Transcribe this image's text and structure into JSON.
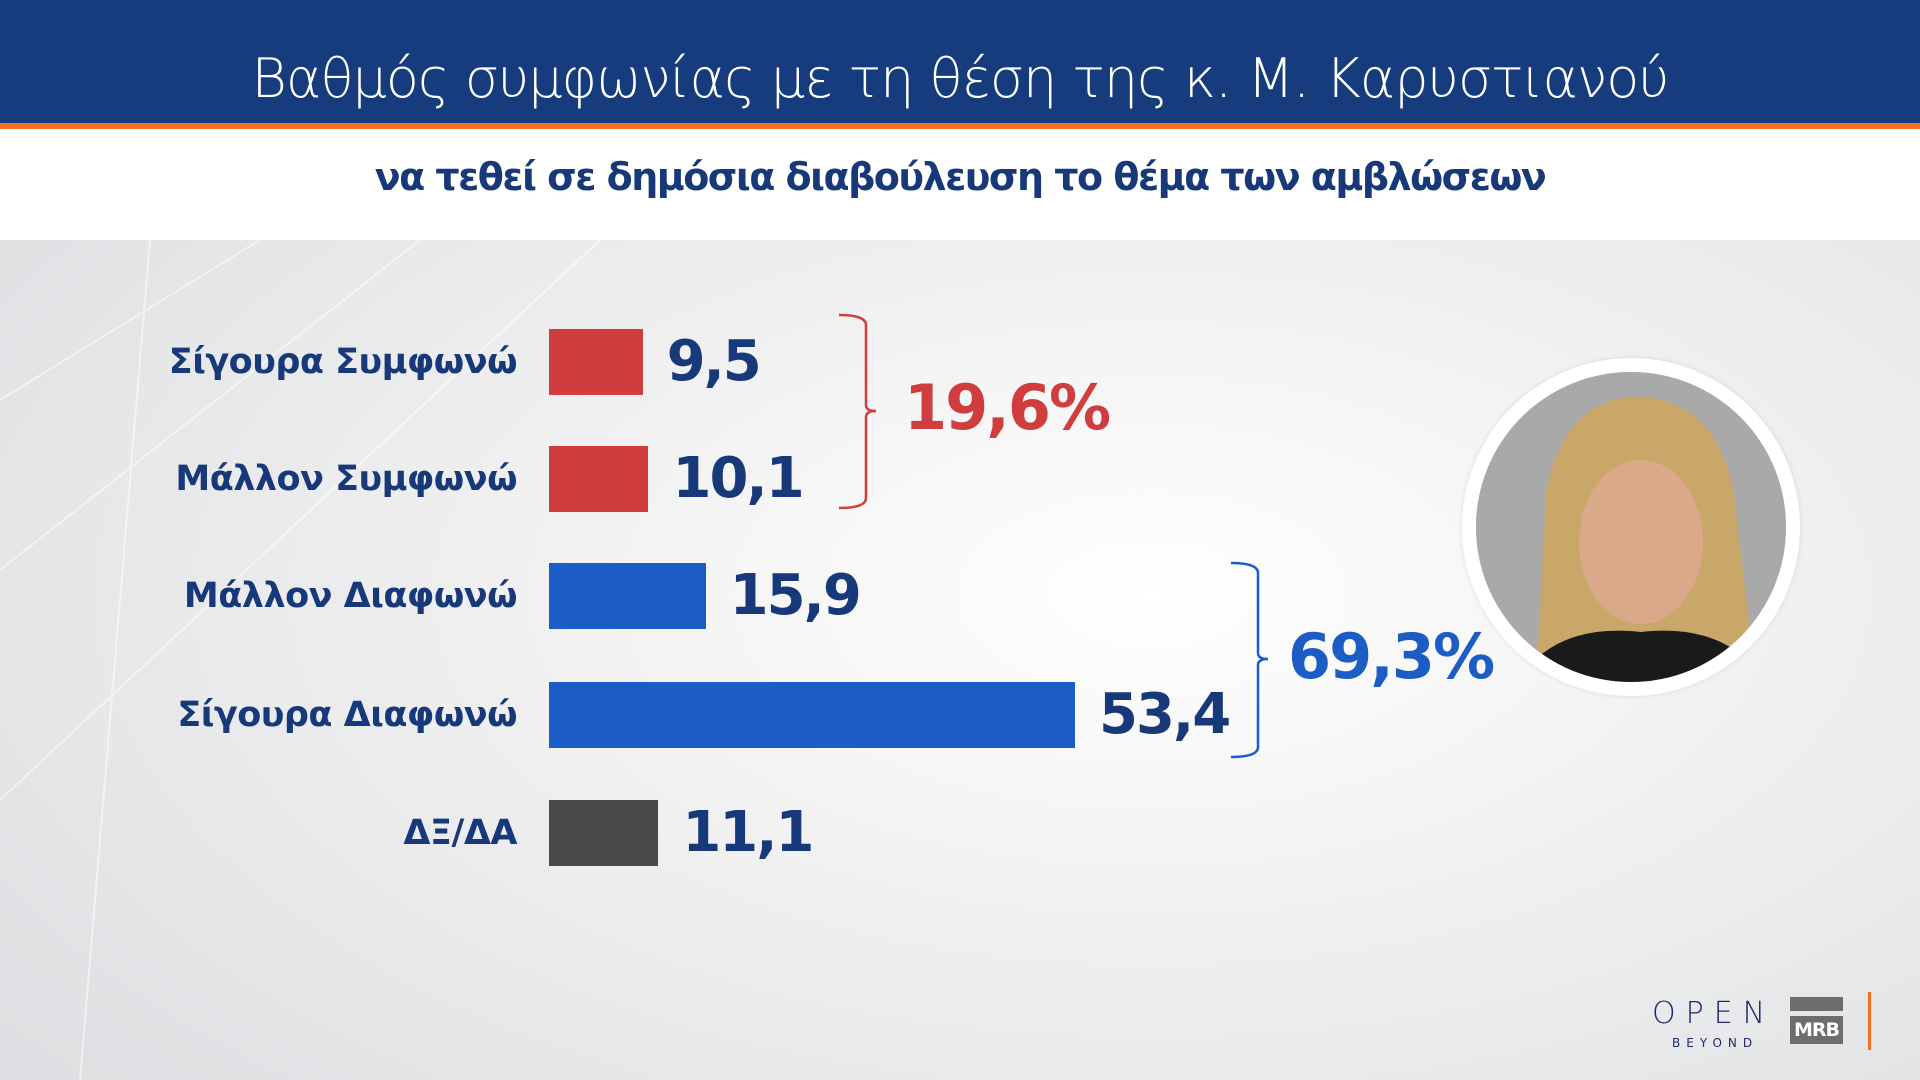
{
  "header": {
    "title": "Βαθμός συμφωνίας με τη θέση της κ. Μ. Καρυστιανού"
  },
  "subheader": {
    "subtitle": "να τεθεί σε δημόσια διαβούλευση το θέμα των αμβλώσεων"
  },
  "chart_data": {
    "type": "bar",
    "orientation": "horizontal",
    "title": "Βαθμός συμφωνίας με τη θέση της κ. Μ. Καρυστιανού",
    "subtitle": "να τεθεί σε δημόσια διαβούλευση το θέμα των αμβλώσεων",
    "categories": [
      "Σίγουρα Συμφωνώ",
      "Μάλλον Συμφωνώ",
      "Μάλλον Διαφωνώ",
      "Σίγουρα Διαφωνώ",
      "ΔΞ/ΔΑ"
    ],
    "values": [
      9.5,
      10.1,
      15.9,
      53.4,
      11.1
    ],
    "value_labels": [
      "9,5",
      "10,1",
      "15,9",
      "53,4",
      "11,1"
    ],
    "colors": [
      "#cf3d3e",
      "#cf3d3e",
      "#1c5cc5",
      "#1c5cc5",
      "#4a4a4a"
    ],
    "groups": [
      {
        "label": "19,6%",
        "members": [
          0,
          1
        ],
        "color": "#cf3d3e"
      },
      {
        "label": "69,3%",
        "members": [
          2,
          3
        ],
        "color": "#1c5cc5"
      }
    ],
    "grid": false,
    "axes_visible": false
  },
  "logos": {
    "open": "OPEN",
    "open_tagline": "BEYOND",
    "mrb": "MRB"
  },
  "colors": {
    "header": "#163c7d",
    "accent": "#f36f21",
    "text": "#17397a"
  }
}
